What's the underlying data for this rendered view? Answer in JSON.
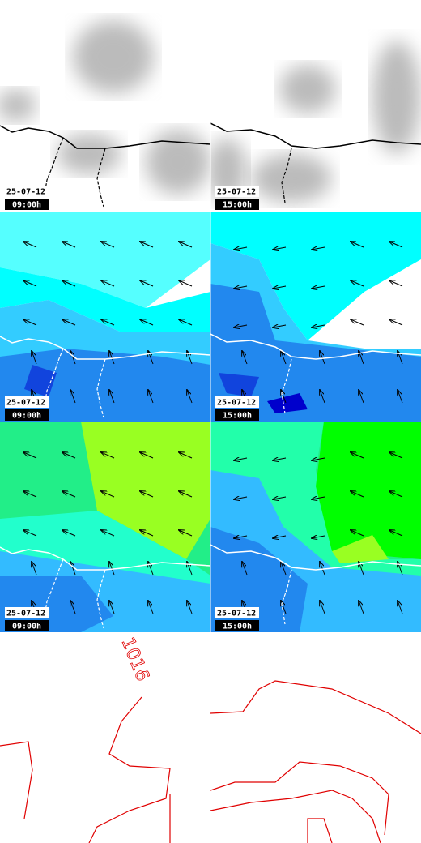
{
  "panels": [
    {
      "date": "25-07-12",
      "time": "09:00h"
    },
    {
      "date": "25-07-12",
      "time": "15:00h"
    },
    {
      "date": "25-07-12",
      "time": "09:00h"
    },
    {
      "date": "25-07-12",
      "time": "15:00h"
    },
    {
      "date": "25-07-12",
      "time": "09:00h"
    },
    {
      "date": "25-07-12",
      "time": "15:00h"
    }
  ],
  "isobar_label": "1016"
}
